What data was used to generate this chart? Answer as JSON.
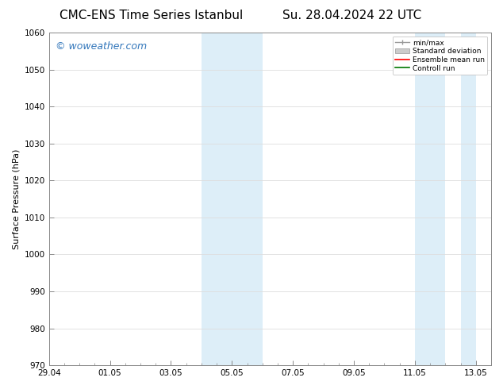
{
  "title_left": "CMC-ENS Time Series Istanbul",
  "title_right": "Su. 28.04.2024 22 UTC",
  "ylabel": "Surface Pressure (hPa)",
  "ylim": [
    970,
    1060
  ],
  "yticks": [
    970,
    980,
    990,
    1000,
    1010,
    1020,
    1030,
    1040,
    1050,
    1060
  ],
  "xtick_labels": [
    "29.04",
    "01.05",
    "03.05",
    "05.05",
    "07.05",
    "09.05",
    "11.05",
    "13.05"
  ],
  "xtick_positions": [
    0,
    2,
    4,
    6,
    8,
    10,
    12,
    14
  ],
  "shaded_regions": [
    {
      "x_start": 5.0,
      "x_end": 7.0
    },
    {
      "x_start": 12.0,
      "x_end": 13.0
    },
    {
      "x_start": 13.5,
      "x_end": 14.0
    }
  ],
  "shade_color": "#ddeef8",
  "watermark": "© woweather.com",
  "watermark_color": "#3377bb",
  "watermark_fontsize": 9,
  "legend_labels": [
    "min/max",
    "Standard deviation",
    "Ensemble mean run",
    "Controll run"
  ],
  "legend_colors_line": [
    "#999999",
    "#bbbbbb",
    "#ff0000",
    "#007700"
  ],
  "background_color": "#ffffff",
  "plot_bg_color": "#ffffff",
  "grid_color": "#dddddd",
  "title_fontsize": 11,
  "axis_fontsize": 8,
  "tick_fontsize": 7.5
}
